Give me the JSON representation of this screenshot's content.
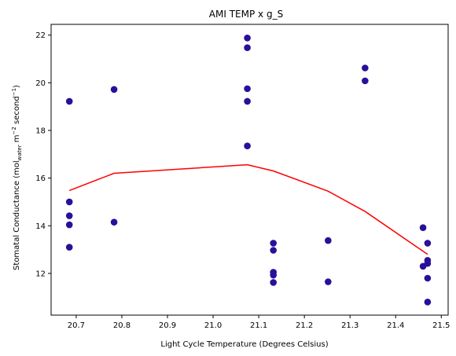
{
  "chart_data": {
    "type": "scatter",
    "title": "AMI TEMP x g_S",
    "xlabel": "Light Cycle Temperature (Degrees Celsius)",
    "ylabel": {
      "prefix": "Stomatal Conductance (mol",
      "sub": "water",
      "middle": " m",
      "sup1": "−2",
      "middle2": " second",
      "sup2": "−1",
      "suffix": ")"
    },
    "xlim": [
      20.645,
      21.515
    ],
    "ylim": [
      10.25,
      22.45
    ],
    "xticks": [
      20.7,
      20.8,
      20.9,
      21.0,
      21.1,
      21.2,
      21.3,
      21.4,
      21.5
    ],
    "xtick_labels": [
      "20.7",
      "20.8",
      "20.9",
      "21.0",
      "21.1",
      "21.2",
      "21.3",
      "21.4",
      "21.5"
    ],
    "yticks": [
      12,
      14,
      16,
      18,
      20,
      22
    ],
    "ytick_labels": [
      "12",
      "14",
      "16",
      "18",
      "20",
      "22"
    ],
    "grid": false,
    "colors": {
      "points": "#2a0f9a",
      "line": "#ff0000"
    },
    "series": [
      {
        "kind": "scatter",
        "x": [
          20.685,
          20.685,
          20.685,
          20.685,
          20.685,
          20.783,
          20.783,
          21.075,
          21.075,
          21.075,
          21.075,
          21.075,
          21.132,
          21.132,
          21.132,
          21.132,
          21.132,
          21.252,
          21.252,
          21.333,
          21.333,
          21.46,
          21.46,
          21.47,
          21.47,
          21.47,
          21.47,
          21.47
        ],
        "y": [
          19.22,
          15.0,
          14.42,
          14.04,
          13.1,
          19.72,
          14.15,
          21.88,
          21.47,
          19.75,
          19.22,
          17.35,
          13.27,
          12.97,
          12.05,
          11.93,
          11.62,
          13.38,
          11.65,
          20.62,
          20.08,
          13.92,
          12.3,
          13.27,
          12.55,
          12.42,
          11.8,
          10.8
        ]
      },
      {
        "kind": "line",
        "x": [
          20.685,
          20.783,
          21.075,
          21.132,
          21.252,
          21.333,
          21.47
        ],
        "y": [
          15.48,
          16.2,
          16.56,
          16.3,
          15.45,
          14.6,
          12.8
        ]
      }
    ]
  }
}
